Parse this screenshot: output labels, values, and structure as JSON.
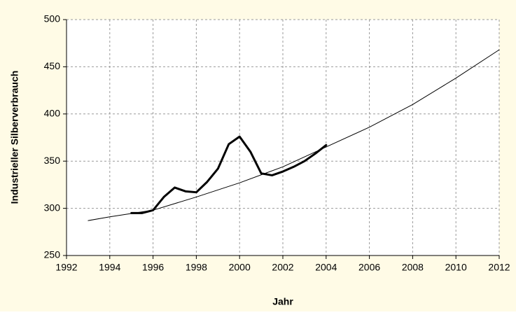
{
  "chart_data": {
    "type": "line",
    "xlabel": "Jahr",
    "ylabel": "Industrieller Silberverbrauch",
    "xlim": [
      1992,
      2012
    ],
    "xticks": [
      1992,
      1994,
      1996,
      1998,
      2000,
      2002,
      2004,
      2006,
      2008,
      2010,
      2012
    ],
    "ylim": [
      250,
      500
    ],
    "yticks": [
      250,
      300,
      350,
      400,
      450,
      500
    ],
    "grid": true,
    "series": [
      {
        "color": "#000000",
        "width": 3,
        "x": [
          1995,
          1995.5,
          1996,
          1996.5,
          1997,
          1997.5,
          1998,
          1998.5,
          1999,
          1999.5,
          2000,
          2000.5,
          2001,
          2001.5,
          2002,
          2002.5,
          2003,
          2003.5,
          2004
        ],
        "values": [
          295,
          295,
          298,
          312,
          322,
          318,
          317,
          328,
          342,
          368,
          376,
          360,
          337,
          335,
          339,
          344,
          350,
          358,
          367
        ]
      },
      {
        "color": "#000000",
        "width": 1,
        "x": [
          1993,
          1994,
          1996,
          1998,
          2000,
          2002,
          2004,
          2006,
          2008,
          2010,
          2012
        ],
        "values": [
          287,
          291,
          298,
          312,
          327,
          344,
          365,
          386,
          410,
          438,
          468
        ]
      }
    ]
  }
}
